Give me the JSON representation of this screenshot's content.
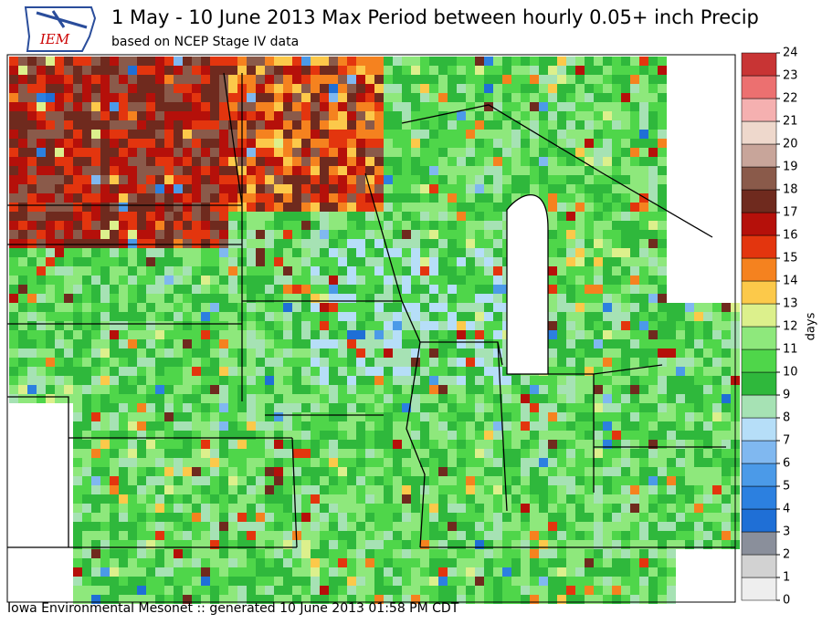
{
  "header": {
    "logo": "IEM",
    "title": "1 May - 10 June 2013 Max Period between hourly 0.05+ inch Precip",
    "subtitle": "based on NCEP Stage IV data"
  },
  "colorbar": {
    "label": "days",
    "ticks": [
      0,
      1,
      2,
      3,
      4,
      5,
      6,
      7,
      8,
      9,
      10,
      11,
      12,
      13,
      14,
      15,
      16,
      17,
      18,
      19,
      20,
      21,
      22,
      23,
      24
    ],
    "colors": [
      "#eeeeee",
      "#d2d2d2",
      "#8a8f9b",
      "#1f6fd6",
      "#2c80e0",
      "#4b9ae8",
      "#80b8f0",
      "#b6def8",
      "#a6e2b4",
      "#2fb83c",
      "#4fd64a",
      "#8ee87c",
      "#dcf08c",
      "#fcc94a",
      "#f5821f",
      "#e3350e",
      "#b5100a",
      "#6f2a1e",
      "#8a5a4a",
      "#c8a59a",
      "#eed8cc",
      "#f5b0b0",
      "#ec7070",
      "#c83434"
    ]
  },
  "footer": "Iowa Environmental Mesonet :: generated 10 June 2013 01:58 PM CDT"
}
